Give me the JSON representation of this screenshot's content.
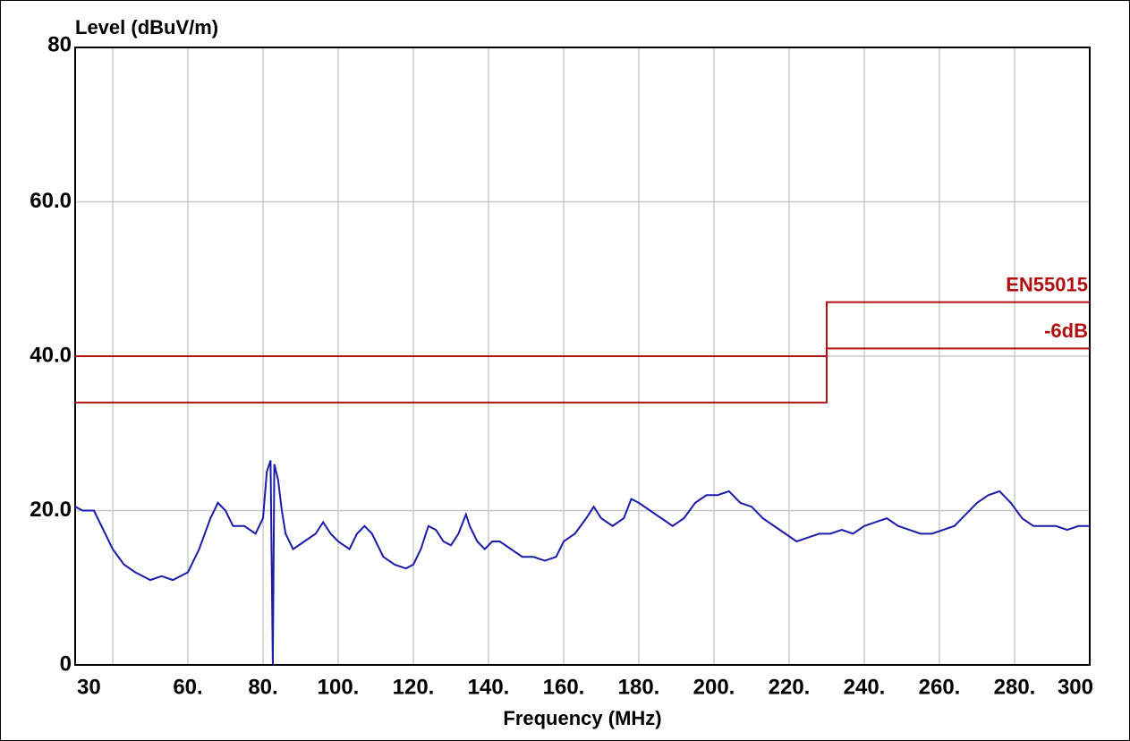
{
  "chart_data": {
    "type": "line",
    "ylabel": "Level (dBuV/m)",
    "xlabel": "Frequency (MHz)",
    "xlim": [
      30,
      300
    ],
    "ylim": [
      0,
      80
    ],
    "xticks": [
      30,
      {
        "value": 60,
        "label": "60."
      },
      {
        "value": 80,
        "label": "80."
      },
      {
        "value": 100,
        "label": "100."
      },
      {
        "value": 120,
        "label": "120."
      },
      {
        "value": 140,
        "label": "140."
      },
      {
        "value": 160,
        "label": "160."
      },
      {
        "value": 180,
        "label": "180."
      },
      {
        "value": 200,
        "label": "200."
      },
      {
        "value": 220,
        "label": "220."
      },
      {
        "value": 240,
        "label": "240."
      },
      {
        "value": 260,
        "label": "260."
      },
      {
        "value": 280,
        "label": "280."
      },
      300
    ],
    "xgrid": [
      40,
      60,
      80,
      100,
      120,
      140,
      160,
      180,
      200,
      220,
      240,
      260,
      280
    ],
    "yticks": [
      0,
      {
        "value": 20,
        "label": "20.0"
      },
      {
        "value": 40,
        "label": "40.0"
      },
      {
        "value": 60,
        "label": "60.0"
      },
      80
    ],
    "grid": true,
    "series": [
      {
        "name": "EN55015",
        "color": "#b01010",
        "x": [
          30,
          230,
          230,
          300
        ],
        "values": [
          40,
          40,
          47,
          47
        ]
      },
      {
        "name": "-6dB",
        "color": "#b01010",
        "x": [
          30,
          230,
          230,
          300
        ],
        "values": [
          34,
          34,
          41,
          41
        ]
      },
      {
        "color": "#1c1ca8",
        "x": [
          30,
          32,
          35,
          38,
          40,
          43,
          46,
          50,
          53,
          56,
          60,
          63,
          66,
          68,
          70,
          72,
          75,
          78,
          80,
          81,
          82,
          82.6,
          83,
          84,
          85,
          86,
          88,
          91,
          94,
          96,
          98,
          100,
          103,
          105,
          107,
          109,
          110,
          112,
          115,
          118,
          120,
          122,
          124,
          126,
          128,
          130,
          132,
          134,
          135,
          137,
          139,
          141,
          143,
          146,
          149,
          152,
          155,
          158,
          160,
          163,
          166,
          168,
          170,
          173,
          176,
          178,
          180,
          183,
          186,
          189,
          192,
          195,
          198,
          201,
          204,
          207,
          210,
          213,
          216,
          219,
          222,
          225,
          228,
          231,
          234,
          237,
          240,
          243,
          246,
          249,
          252,
          255,
          258,
          261,
          264,
          267,
          270,
          273,
          276,
          279,
          282,
          285,
          288,
          291,
          294,
          297,
          300
        ],
        "values": [
          20.5,
          20,
          20,
          17,
          15,
          13,
          12,
          11,
          11.5,
          11,
          12,
          15,
          19,
          21,
          20,
          18,
          18,
          17,
          19,
          25,
          26.5,
          0,
          26,
          24,
          20,
          17,
          15,
          16,
          17,
          18.5,
          17,
          16,
          15,
          17,
          18,
          17,
          16,
          14,
          13,
          12.5,
          13,
          15,
          18,
          17.5,
          16,
          15.5,
          17,
          19.5,
          18,
          16,
          15,
          16,
          16,
          15,
          14,
          14,
          13.5,
          14,
          16,
          17,
          19,
          20.5,
          19,
          18,
          19,
          21.5,
          21,
          20,
          19,
          18,
          19,
          21,
          22,
          22,
          22.5,
          21,
          20.5,
          19,
          18,
          17,
          16,
          16.5,
          17,
          17,
          17.5,
          17,
          18,
          18.5,
          19,
          18,
          17.5,
          17,
          17,
          17.5,
          18,
          19.5,
          21,
          22,
          22.5,
          21,
          19,
          18,
          18,
          18,
          17.5,
          18,
          18
        ]
      }
    ]
  }
}
